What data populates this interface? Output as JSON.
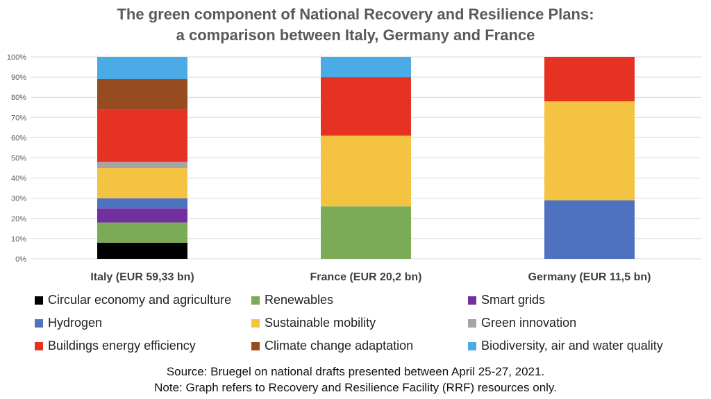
{
  "title_line1": "The green component of National Recovery and Resilience Plans:",
  "title_line2": "a comparison between Italy, Germany and France",
  "source_line1": "Source: Bruegel on national drafts presented between April 25-27, 2021.",
  "source_line2": "Note: Graph refers to Recovery and Resilience Facility (RRF) resources only.",
  "chart_data": {
    "type": "bar",
    "stacked": true,
    "percent": true,
    "categories": [
      "Italy (EUR 59,33 bn)",
      "France (EUR 20,2 bn)",
      "Germany (EUR 11,5 bn)"
    ],
    "yticks": [
      "0%",
      "10%",
      "20%",
      "30%",
      "40%",
      "50%",
      "60%",
      "70%",
      "80%",
      "90%",
      "100%"
    ],
    "ylim": [
      0,
      100
    ],
    "grid": true,
    "legend_placement": "bottom",
    "series": [
      {
        "name": "Circular economy and agriculture",
        "color": "#000000",
        "values": [
          8,
          0,
          0
        ]
      },
      {
        "name": "Renewables",
        "color": "#7bab57",
        "values": [
          10,
          26,
          0
        ]
      },
      {
        "name": "Smart grids",
        "color": "#7030a0",
        "values": [
          7,
          0,
          0
        ]
      },
      {
        "name": "Hydrogen",
        "color": "#4f72c0",
        "values": [
          5,
          0,
          29
        ]
      },
      {
        "name": "Sustainable mobility",
        "color": "#f4c342",
        "values": [
          15,
          35,
          49
        ]
      },
      {
        "name": "Green innovation",
        "color": "#a5a5a5",
        "values": [
          3,
          0,
          0
        ]
      },
      {
        "name": "Buildings energy efficiency",
        "color": "#e63223",
        "values": [
          26,
          29,
          22
        ]
      },
      {
        "name": "Climate change adaptation",
        "color": "#974b20",
        "values": [
          15,
          0,
          0
        ]
      },
      {
        "name": "Biodiversity, air and water quality",
        "color": "#4aabe6",
        "values": [
          11,
          10,
          0
        ]
      }
    ]
  }
}
